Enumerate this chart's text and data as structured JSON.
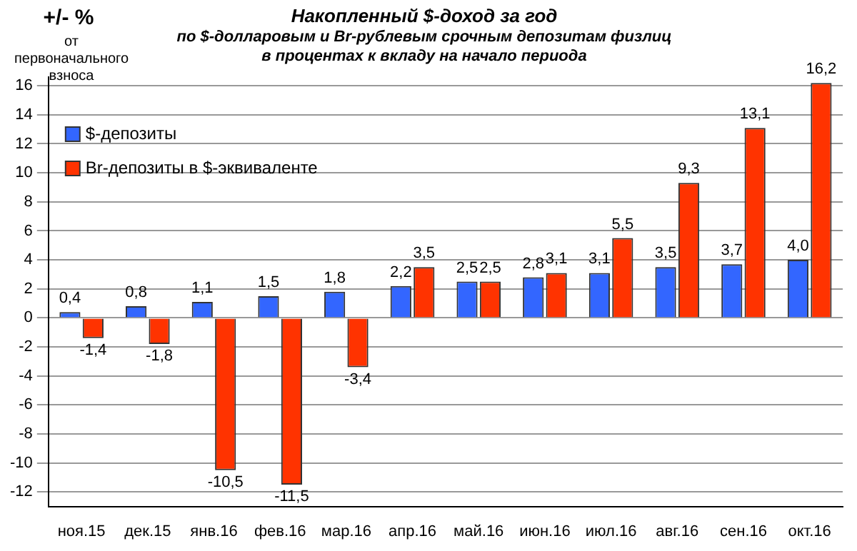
{
  "chart_data": {
    "type": "bar",
    "title": "Накопленный $-доход за год",
    "subtitle": "по $-долларовым и Br-рублевым срочным депозитам физлиц\nв процентах к вкладу на начало периода",
    "ylabel": "+/- %",
    "annotations": [
      "от первоначального взноса"
    ],
    "categories": [
      "ноя.15",
      "дек.15",
      "янв.16",
      "фев.16",
      "мар.16",
      "апр.16",
      "май.16",
      "июн.16",
      "июл.16",
      "авг.16",
      "сен.16",
      "окт.16"
    ],
    "series": [
      {
        "name": "$-депозиты",
        "color": "#3366ff",
        "values": [
          0.4,
          0.8,
          1.1,
          1.5,
          1.8,
          2.2,
          2.5,
          2.8,
          3.1,
          3.5,
          3.7,
          4.0
        ],
        "value_labels": [
          "0,4",
          "0,8",
          "1,1",
          "1,5",
          "1,8",
          "2,2",
          "2,5",
          "2,8",
          "3,1",
          "3,5",
          "3,7",
          "4,0"
        ]
      },
      {
        "name": "Br-депозиты в $-эквиваленте",
        "color": "#ff3300",
        "values": [
          -1.4,
          -1.8,
          -10.5,
          -11.5,
          -3.4,
          3.5,
          2.5,
          3.1,
          5.5,
          9.3,
          13.1,
          16.2
        ],
        "value_labels": [
          "-1,4",
          "-1,8",
          "-10,5",
          "-11,5",
          "-3,4",
          "3,5",
          "2,5",
          "3,1",
          "5,5",
          "9,3",
          "13,1",
          "16,2"
        ]
      }
    ],
    "ylim": [
      -13,
      16.6
    ],
    "yticks": [
      -12,
      -10,
      -8,
      -6,
      -4,
      -2,
      0,
      2,
      4,
      6,
      8,
      10,
      12,
      14,
      16
    ],
    "grid": "y",
    "legend": "top left"
  }
}
